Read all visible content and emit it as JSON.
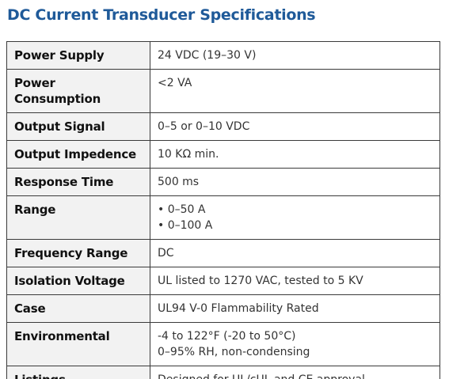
{
  "title": "DC Current Transducer Specifications",
  "table": {
    "rows": [
      [
        "Power Supply",
        [
          "24 VDC (19–30 V)"
        ]
      ],
      [
        "Power Consumption",
        [
          "<2 VA"
        ]
      ],
      [
        "Output Signal",
        [
          "0–5 or 0–10 VDC"
        ]
      ],
      [
        "Output Impedence",
        [
          "10 KΩ min."
        ]
      ],
      [
        "Response Time",
        [
          "500 ms"
        ]
      ],
      [
        "Range",
        [
          "• 0–50 A",
          "• 0–100 A"
        ]
      ],
      [
        "Frequency Range",
        [
          "DC"
        ]
      ],
      [
        "Isolation Voltage",
        [
          "UL listed to 1270 VAC, tested to 5 KV"
        ]
      ],
      [
        "Case",
        [
          "UL94 V-0 Flammability Rated"
        ]
      ],
      [
        "Environmental",
        [
          "-4 to 122°F (-20 to 50°C)",
          "0–95% RH, non-condensing"
        ]
      ],
      [
        "Listings",
        [
          "Designed for UL/cUL and CE approval"
        ]
      ]
    ]
  }
}
